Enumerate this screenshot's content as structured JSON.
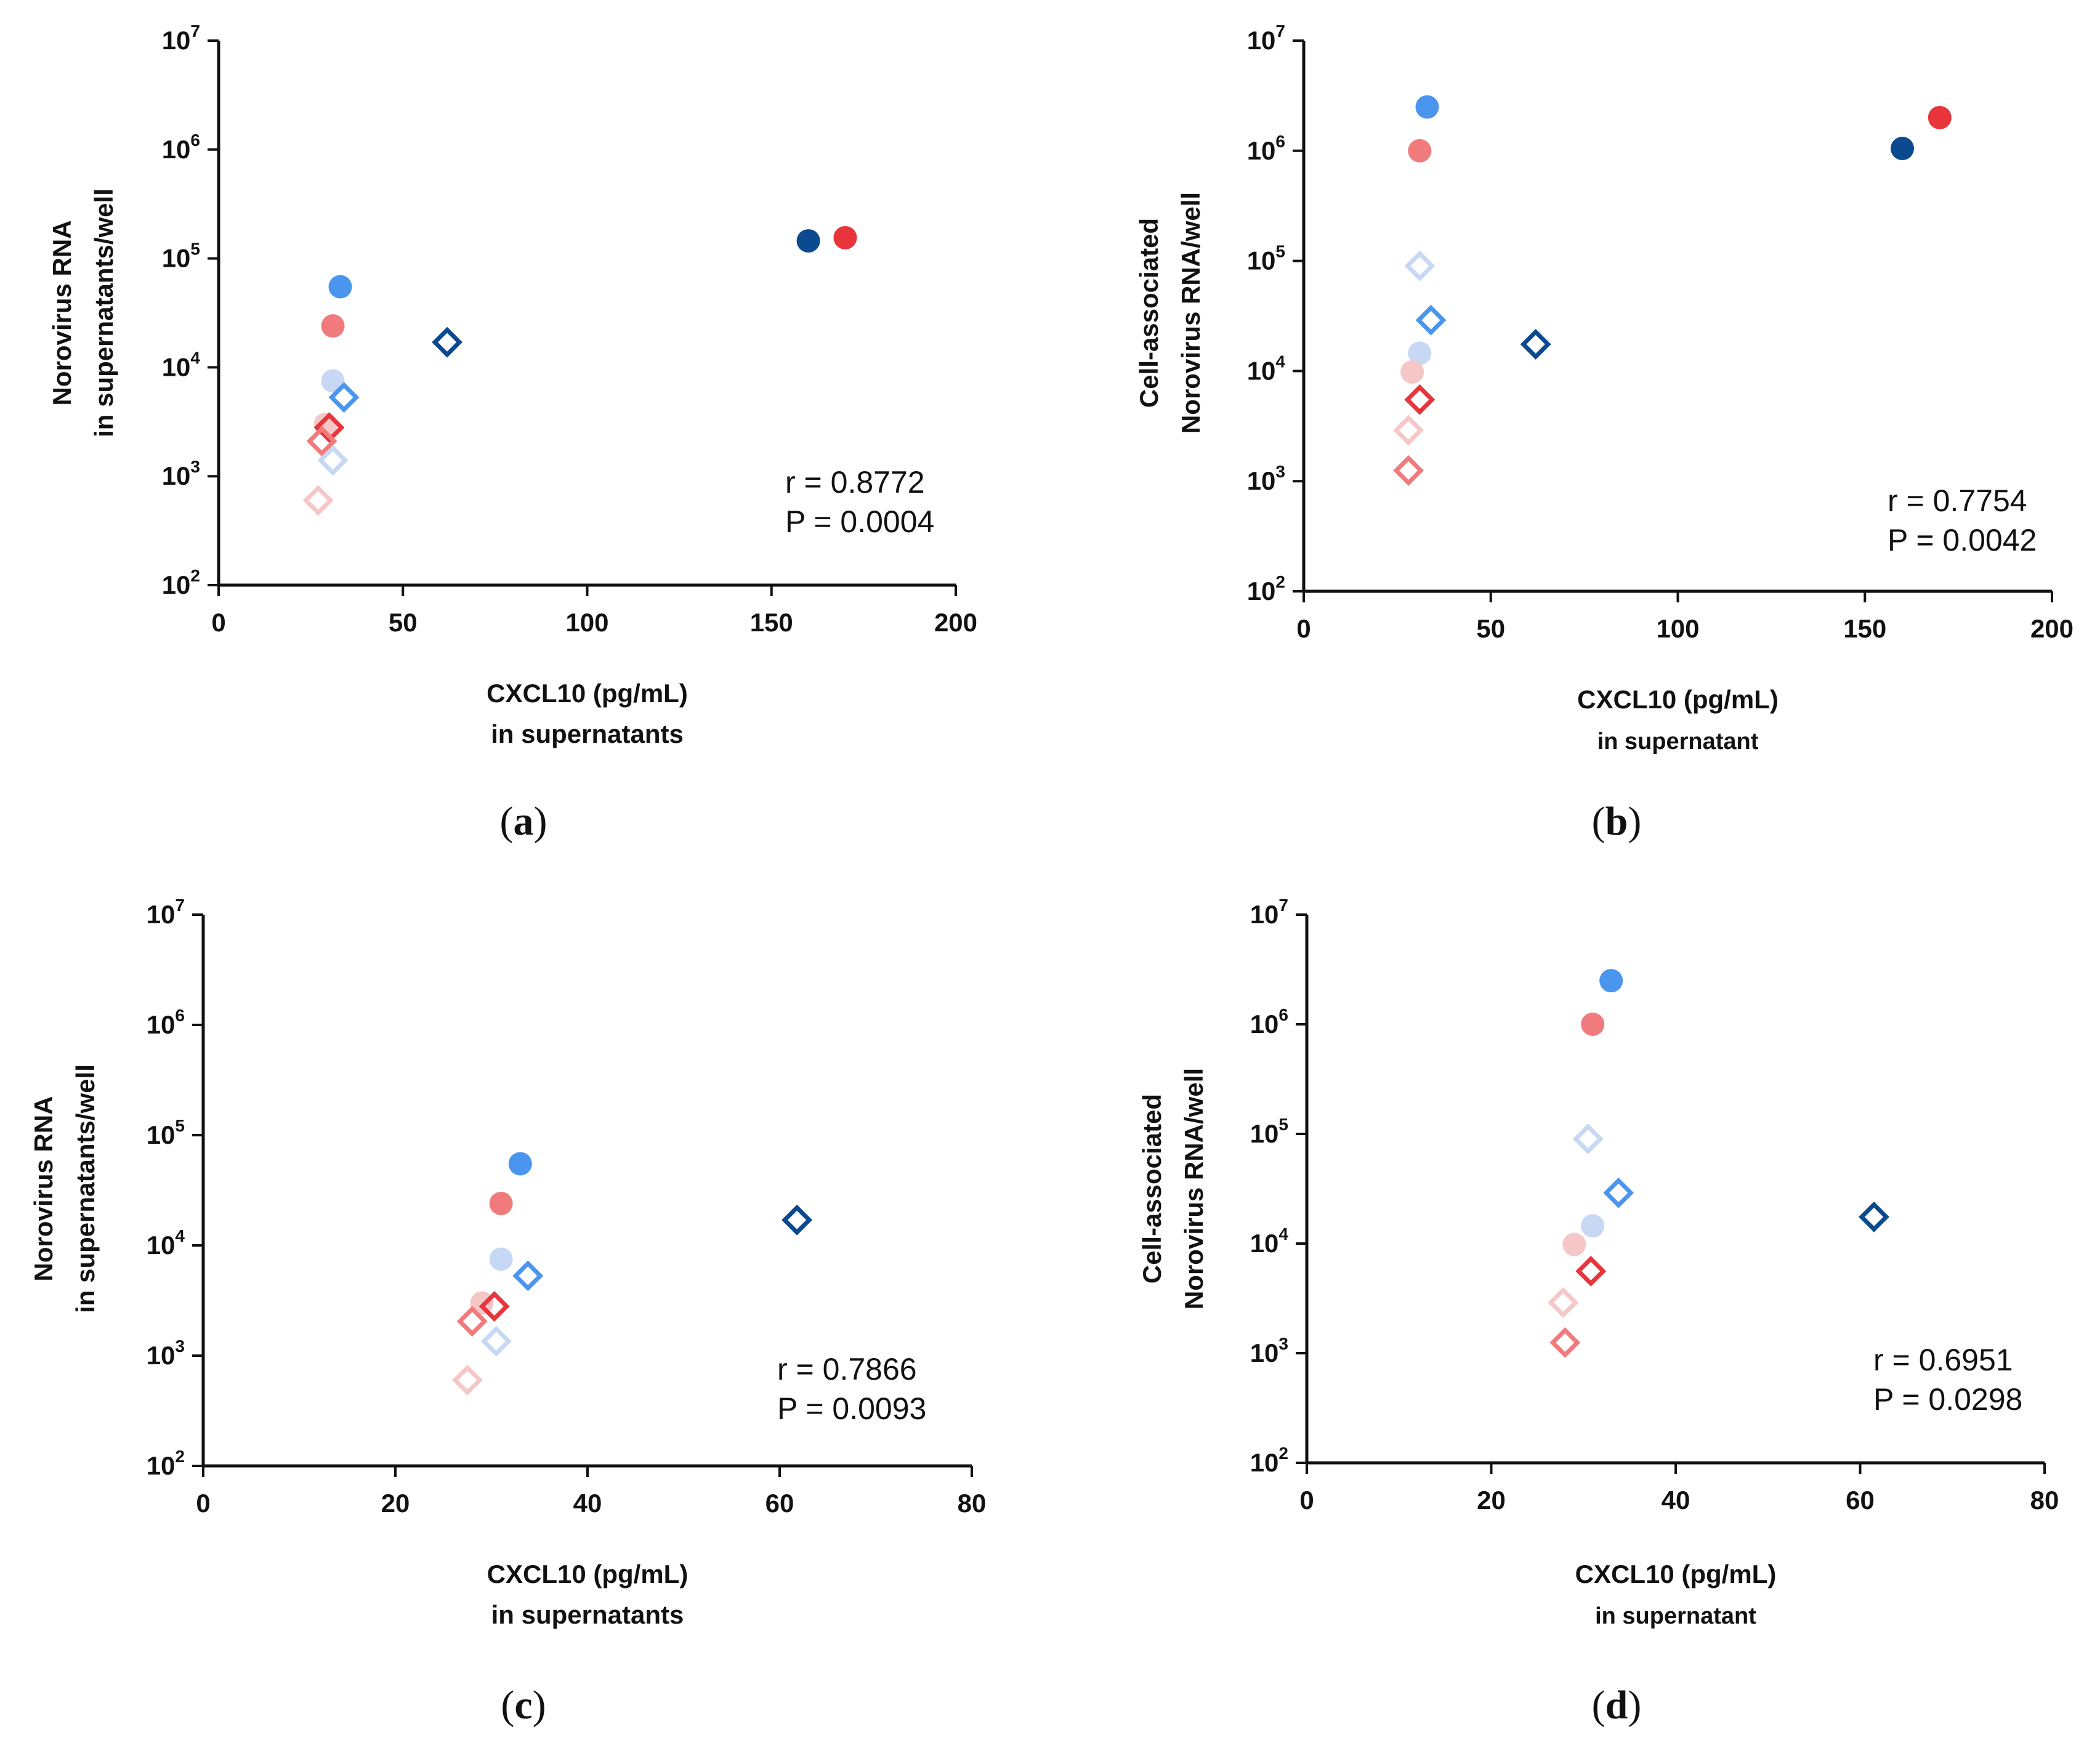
{
  "colors": {
    "dark_blue": "#0b4a8e",
    "mid_blue": "#4a95ee",
    "light_blue": "#c6d8f3",
    "red": "#e8343b",
    "pink": "#f17a7c",
    "light_pink": "#f6c7c7"
  },
  "chart_data": [
    {
      "type": "scatter",
      "panel": "(a)",
      "panel_letter": "a",
      "ylabel": [
        "Norovirus RNA",
        "in supernatants/well"
      ],
      "xlabel": [
        "CXCL10 (pg/mL)",
        "in supernatants"
      ],
      "xlim": [
        0,
        200
      ],
      "xticks": [
        "0",
        "50",
        "100",
        "150",
        "200"
      ],
      "ylim": [
        100,
        10000000
      ],
      "yscale": "log",
      "yticks": [
        {
          "base": "10",
          "exp": "2"
        },
        {
          "base": "10",
          "exp": "3"
        },
        {
          "base": "10",
          "exp": "4"
        },
        {
          "base": "10",
          "exp": "5"
        },
        {
          "base": "10",
          "exp": "6"
        },
        {
          "base": "10",
          "exp": "7"
        }
      ],
      "stats": [
        "r = 0.8772",
        "P = 0.0004"
      ],
      "points": [
        {
          "x": 33,
          "y": 55000,
          "shape": "circle",
          "color": "mid_blue"
        },
        {
          "x": 31,
          "y": 24000,
          "shape": "circle",
          "color": "pink"
        },
        {
          "x": 31,
          "y": 7500,
          "shape": "circle",
          "color": "light_blue"
        },
        {
          "x": 160,
          "y": 145000,
          "shape": "circle",
          "color": "dark_blue"
        },
        {
          "x": 170,
          "y": 155000,
          "shape": "circle",
          "color": "red"
        },
        {
          "x": 29,
          "y": 3000,
          "shape": "circle",
          "color": "light_pink"
        },
        {
          "x": 62,
          "y": 17000,
          "shape": "diamond",
          "color": "dark_blue"
        },
        {
          "x": 34,
          "y": 5300,
          "shape": "diamond",
          "color": "mid_blue"
        },
        {
          "x": 30,
          "y": 2800,
          "shape": "diamond",
          "color": "red"
        },
        {
          "x": 28,
          "y": 2100,
          "shape": "diamond",
          "color": "pink"
        },
        {
          "x": 31,
          "y": 1400,
          "shape": "diamond",
          "color": "light_blue"
        },
        {
          "x": 27,
          "y": 600,
          "shape": "diamond",
          "color": "light_pink"
        }
      ]
    },
    {
      "type": "scatter",
      "panel": "(b)",
      "panel_letter": "b",
      "ylabel": [
        "Cell-associated",
        "Norovirus RNA/well"
      ],
      "xlabel": [
        "CXCL10  (pg/mL)",
        "in supernatant"
      ],
      "xlim": [
        0,
        200
      ],
      "xticks": [
        "0",
        "50",
        "100",
        "150",
        "200"
      ],
      "ylim": [
        100,
        10000000
      ],
      "yscale": "log",
      "yticks": [
        {
          "base": "10",
          "exp": "2"
        },
        {
          "base": "10",
          "exp": "3"
        },
        {
          "base": "10",
          "exp": "4"
        },
        {
          "base": "10",
          "exp": "5"
        },
        {
          "base": "10",
          "exp": "6"
        },
        {
          "base": "10",
          "exp": "7"
        }
      ],
      "stats": [
        "r = 0.7754",
        "P = 0.0042"
      ],
      "points": [
        {
          "x": 33,
          "y": 2500000,
          "shape": "circle",
          "color": "mid_blue"
        },
        {
          "x": 31,
          "y": 1000000,
          "shape": "circle",
          "color": "pink"
        },
        {
          "x": 160,
          "y": 1050000,
          "shape": "circle",
          "color": "dark_blue"
        },
        {
          "x": 170,
          "y": 2000000,
          "shape": "circle",
          "color": "red"
        },
        {
          "x": 31,
          "y": 14500,
          "shape": "circle",
          "color": "light_blue"
        },
        {
          "x": 29,
          "y": 9800,
          "shape": "circle",
          "color": "light_pink"
        },
        {
          "x": 31,
          "y": 90000,
          "shape": "diamond",
          "color": "light_blue"
        },
        {
          "x": 34,
          "y": 29000,
          "shape": "diamond",
          "color": "mid_blue"
        },
        {
          "x": 62,
          "y": 17500,
          "shape": "diamond",
          "color": "dark_blue"
        },
        {
          "x": 31,
          "y": 5500,
          "shape": "diamond",
          "color": "red"
        },
        {
          "x": 28,
          "y": 2900,
          "shape": "diamond",
          "color": "light_pink"
        },
        {
          "x": 28,
          "y": 1250,
          "shape": "diamond",
          "color": "pink"
        }
      ]
    },
    {
      "type": "scatter",
      "panel": "(c)",
      "panel_letter": "c",
      "ylabel": [
        "Norovirus RNA",
        "in supernatants/well"
      ],
      "xlabel": [
        "CXCL10 (pg/mL)",
        "in supernatants"
      ],
      "xlim": [
        0,
        80
      ],
      "xticks": [
        "0",
        "20",
        "40",
        "60",
        "80"
      ],
      "ylim": [
        100,
        10000000
      ],
      "yscale": "log",
      "yticks": [
        {
          "base": "10",
          "exp": "2"
        },
        {
          "base": "10",
          "exp": "3"
        },
        {
          "base": "10",
          "exp": "4"
        },
        {
          "base": "10",
          "exp": "5"
        },
        {
          "base": "10",
          "exp": "6"
        },
        {
          "base": "10",
          "exp": "7"
        }
      ],
      "stats": [
        "r = 0.7866",
        "P = 0.0093"
      ],
      "points": [
        {
          "x": 33,
          "y": 55000,
          "shape": "circle",
          "color": "mid_blue"
        },
        {
          "x": 31,
          "y": 24000,
          "shape": "circle",
          "color": "pink"
        },
        {
          "x": 31,
          "y": 7500,
          "shape": "circle",
          "color": "light_blue"
        },
        {
          "x": 29,
          "y": 3000,
          "shape": "circle",
          "color": "light_pink"
        },
        {
          "x": 61.8,
          "y": 17000,
          "shape": "diamond",
          "color": "dark_blue"
        },
        {
          "x": 33.8,
          "y": 5300,
          "shape": "diamond",
          "color": "mid_blue"
        },
        {
          "x": 30.3,
          "y": 2800,
          "shape": "diamond",
          "color": "red"
        },
        {
          "x": 28,
          "y": 2050,
          "shape": "diamond",
          "color": "pink"
        },
        {
          "x": 30.5,
          "y": 1350,
          "shape": "diamond",
          "color": "light_blue"
        },
        {
          "x": 27.5,
          "y": 600,
          "shape": "diamond",
          "color": "light_pink"
        }
      ]
    },
    {
      "type": "scatter",
      "panel": "(d)",
      "panel_letter": "d",
      "ylabel": [
        "Cell-associated",
        "Norovirus RNA/well"
      ],
      "xlabel": [
        "CXCL10  (pg/mL)",
        "in supernatant"
      ],
      "xlim": [
        0,
        80
      ],
      "xticks": [
        "0",
        "20",
        "40",
        "60",
        "80"
      ],
      "ylim": [
        100,
        10000000
      ],
      "yscale": "log",
      "yticks": [
        {
          "base": "10",
          "exp": "2"
        },
        {
          "base": "10",
          "exp": "3"
        },
        {
          "base": "10",
          "exp": "4"
        },
        {
          "base": "10",
          "exp": "5"
        },
        {
          "base": "10",
          "exp": "6"
        },
        {
          "base": "10",
          "exp": "7"
        }
      ],
      "stats": [
        "r = 0.6951",
        "P = 0.0298"
      ],
      "points": [
        {
          "x": 33,
          "y": 2500000,
          "shape": "circle",
          "color": "mid_blue"
        },
        {
          "x": 31,
          "y": 1000000,
          "shape": "circle",
          "color": "pink"
        },
        {
          "x": 31,
          "y": 14500,
          "shape": "circle",
          "color": "light_blue"
        },
        {
          "x": 29,
          "y": 9800,
          "shape": "circle",
          "color": "light_pink"
        },
        {
          "x": 30.5,
          "y": 90000,
          "shape": "diamond",
          "color": "light_blue"
        },
        {
          "x": 33.8,
          "y": 29000,
          "shape": "diamond",
          "color": "mid_blue"
        },
        {
          "x": 61.5,
          "y": 17500,
          "shape": "diamond",
          "color": "dark_blue"
        },
        {
          "x": 30.8,
          "y": 5600,
          "shape": "diamond",
          "color": "red"
        },
        {
          "x": 27.8,
          "y": 2900,
          "shape": "diamond",
          "color": "light_pink"
        },
        {
          "x": 28,
          "y": 1250,
          "shape": "diamond",
          "color": "pink"
        }
      ]
    }
  ]
}
